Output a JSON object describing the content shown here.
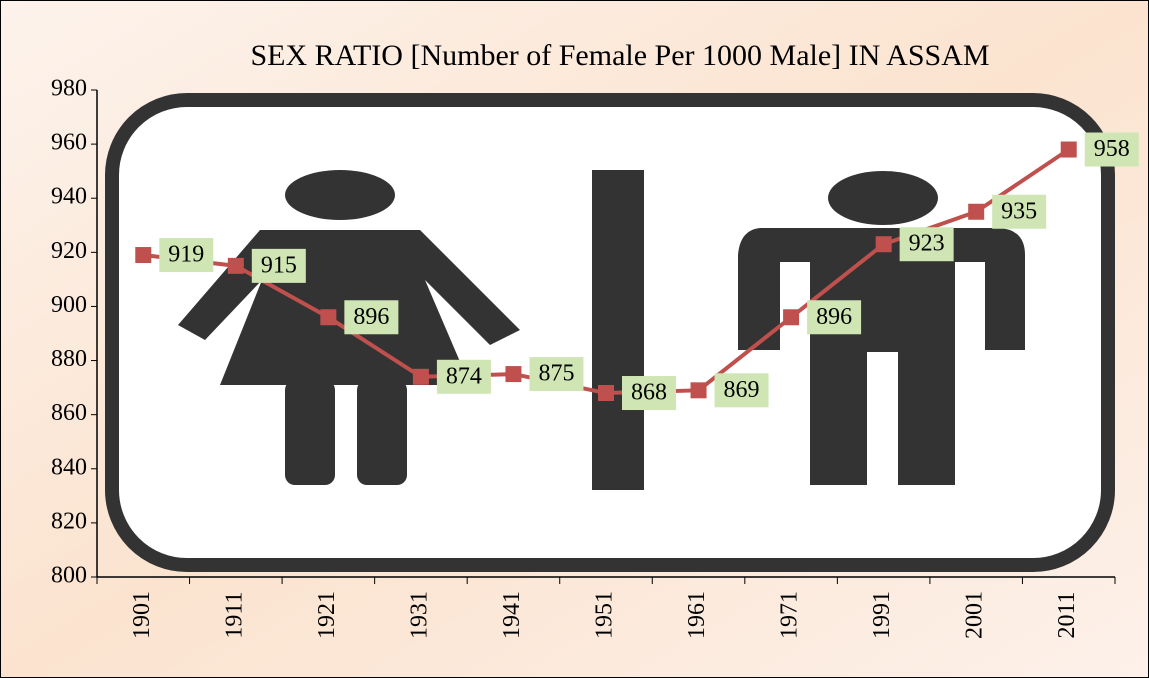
{
  "chart_data": {
    "type": "line",
    "title": "SEX  RATIO [Number of Female Per 1000 Male] IN  ASSAM",
    "categories": [
      "1901",
      "1911",
      "1921",
      "1931",
      "1941",
      "1951",
      "1961",
      "1971",
      "1991",
      "2001",
      "2011"
    ],
    "values": [
      919,
      915,
      896,
      874,
      875,
      868,
      869,
      896,
      923,
      935,
      958
    ],
    "color": "#c0504d",
    "label_color": "#cfe6b4",
    "ylim": [
      800,
      980
    ],
    "yticks": [
      800,
      820,
      840,
      860,
      880,
      900,
      920,
      940,
      960,
      980
    ]
  }
}
